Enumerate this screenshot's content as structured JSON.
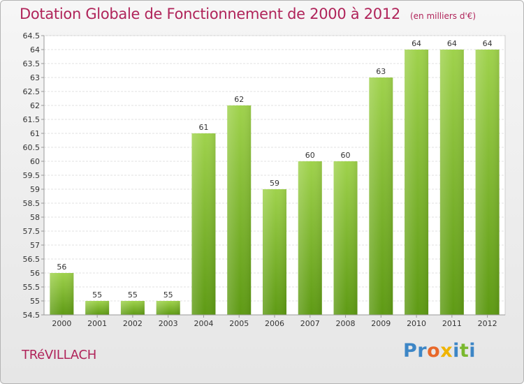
{
  "chart_data": {
    "type": "bar",
    "title": "Dotation Globale de Fonctionnement de 2000 à 2012",
    "unit": "(en milliers d'€)",
    "categories": [
      "2000",
      "2001",
      "2002",
      "2003",
      "2004",
      "2005",
      "2006",
      "2007",
      "2008",
      "2009",
      "2010",
      "2011",
      "2012"
    ],
    "values": [
      56,
      55,
      55,
      55,
      61,
      62,
      59,
      60,
      60,
      63,
      64,
      64,
      64
    ],
    "ylim": [
      54.5,
      64.5
    ],
    "yticks": [
      "54.5",
      "55",
      "55.5",
      "56",
      "56.5",
      "57",
      "57.5",
      "58",
      "58.5",
      "59",
      "59.5",
      "60",
      "60.5",
      "61",
      "61.5",
      "62",
      "62.5",
      "63",
      "63.5",
      "64",
      "64.5"
    ],
    "grid": true,
    "bar_color": "#7dbb2a"
  },
  "commune": "TRéVILLACH",
  "logo": {
    "letters": [
      {
        "ch": "P",
        "color": "#3d86c6"
      },
      {
        "ch": "r",
        "color": "#3d86c6"
      },
      {
        "ch": "o",
        "color": "#e8682a"
      },
      {
        "ch": "x",
        "color": "#f0b400"
      },
      {
        "ch": "i",
        "color": "#3d86c6"
      },
      {
        "ch": "t",
        "color": "#7ab82e"
      },
      {
        "ch": "i",
        "color": "#3d86c6"
      }
    ]
  }
}
